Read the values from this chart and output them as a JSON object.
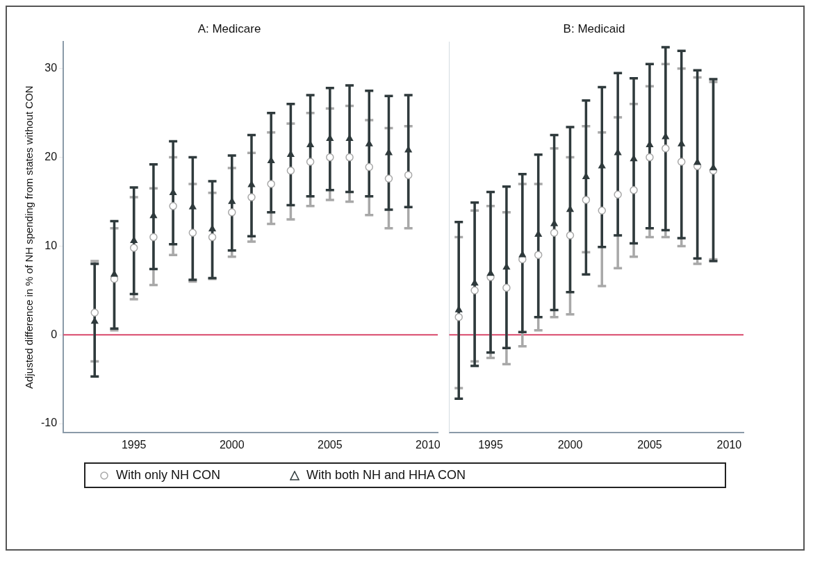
{
  "chart_data": [
    {
      "type": "scatter",
      "title": "A: Medicare",
      "ylabel": "Adjusted difference in % of NH spending from states without CON",
      "xlim": [
        1991.4,
        2010.5
      ],
      "xticks": [
        1995,
        2000,
        2005,
        2010
      ],
      "ylim": [
        -11,
        33
      ],
      "yticks": [
        -10,
        0,
        10,
        20,
        30
      ],
      "grid": false,
      "legend": "bottom",
      "ref_lines": [
        {
          "axis": "y",
          "value": 0,
          "color": "#d8476a"
        }
      ],
      "series": [
        {
          "name": "With only NH CON",
          "color": "#a8a8a8",
          "marker": "circle",
          "x": [
            1993,
            1994,
            1995,
            1996,
            1997,
            1998,
            1999,
            2000,
            2001,
            2002,
            2003,
            2004,
            2005,
            2006,
            2007,
            2008,
            2009
          ],
          "values": [
            2.5,
            6.3,
            9.8,
            11.0,
            14.5,
            11.5,
            11.0,
            13.8,
            15.5,
            17.0,
            18.5,
            19.5,
            20.0,
            20.0,
            18.9,
            17.6,
            18.0
          ],
          "errors": [
            [
              -3,
              8.3
            ],
            [
              0.5,
              12
            ],
            [
              4,
              15.5
            ],
            [
              5.6,
              16.5
            ],
            [
              9,
              20
            ],
            [
              6,
              17
            ],
            [
              6.3,
              16
            ],
            [
              8.8,
              18.8
            ],
            [
              10.5,
              20.5
            ],
            [
              12.5,
              22.8
            ],
            [
              13,
              23.8
            ],
            [
              14.5,
              25
            ],
            [
              15.2,
              25.5
            ],
            [
              15,
              25.8
            ],
            [
              13.5,
              24.2
            ],
            [
              12,
              23.3
            ],
            [
              12,
              23.5
            ]
          ]
        },
        {
          "name": "With both NH and HHA CON",
          "color": "#2f3a3c",
          "marker": "triangle",
          "x": [
            1993,
            1994,
            1995,
            1996,
            1997,
            1998,
            1999,
            2000,
            2001,
            2002,
            2003,
            2004,
            2005,
            2006,
            2007,
            2008,
            2009
          ],
          "values": [
            1.5,
            6.8,
            10.6,
            13.4,
            16.0,
            14.4,
            11.9,
            15.0,
            16.9,
            19.6,
            20.3,
            21.4,
            22.1,
            22.1,
            21.5,
            20.5,
            20.8
          ],
          "errors": [
            [
              -4.7,
              8.0
            ],
            [
              0.7,
              12.8
            ],
            [
              4.6,
              16.6
            ],
            [
              7.4,
              19.2
            ],
            [
              10.2,
              21.8
            ],
            [
              6.2,
              20.0
            ],
            [
              6.4,
              17.3
            ],
            [
              9.5,
              20.2
            ],
            [
              11.1,
              22.5
            ],
            [
              13.8,
              25.0
            ],
            [
              14.6,
              26.0
            ],
            [
              15.6,
              27.0
            ],
            [
              16.3,
              27.8
            ],
            [
              16.1,
              28.1
            ],
            [
              15.6,
              27.5
            ],
            [
              14.1,
              26.9
            ],
            [
              14.4,
              27.0
            ]
          ]
        }
      ]
    },
    {
      "type": "scatter",
      "title": "B: Medicaid",
      "xlim": [
        1992.4,
        2010.9
      ],
      "xticks": [
        1995,
        2000,
        2005,
        2010
      ],
      "ylim": [
        -11,
        33
      ],
      "yticks": [
        -10,
        0,
        10,
        20,
        30
      ],
      "tick_labels": "x",
      "grid": false,
      "ref_lines": [
        {
          "axis": "y",
          "value": 0,
          "color": "#d8476a"
        }
      ],
      "series": [
        {
          "color": "#a8a8a8",
          "marker": "circle",
          "x": [
            1993,
            1994,
            1995,
            1996,
            1997,
            1998,
            1999,
            2000,
            2001,
            2002,
            2003,
            2004,
            2005,
            2006,
            2007,
            2008,
            2009
          ],
          "values": [
            2.0,
            5.0,
            6.5,
            5.3,
            8.5,
            9.0,
            11.5,
            11.2,
            15.2,
            14.0,
            15.8,
            16.3,
            20.0,
            21.0,
            19.5,
            19.0,
            18.5
          ],
          "errors": [
            [
              -6,
              11
            ],
            [
              -3,
              14
            ],
            [
              -2.6,
              14.5
            ],
            [
              -3.3,
              13.8
            ],
            [
              -1.3,
              17
            ],
            [
              0.5,
              17
            ],
            [
              2,
              21
            ],
            [
              2.3,
              20
            ],
            [
              9.3,
              23.5
            ],
            [
              5.5,
              22.8
            ],
            [
              7.5,
              24.5
            ],
            [
              8.8,
              26
            ],
            [
              11,
              28
            ],
            [
              11,
              30.5
            ],
            [
              10,
              30
            ],
            [
              8,
              29
            ],
            [
              8.5,
              28.5
            ]
          ]
        },
        {
          "color": "#2f3a3c",
          "marker": "triangle",
          "x": [
            1993,
            1994,
            1995,
            1996,
            1997,
            1998,
            1999,
            2000,
            2001,
            2002,
            2003,
            2004,
            2005,
            2006,
            2007,
            2008,
            2009
          ],
          "values": [
            2.8,
            5.8,
            6.9,
            7.6,
            9.0,
            11.3,
            12.5,
            14.1,
            17.8,
            19.0,
            20.5,
            19.8,
            21.4,
            22.3,
            21.5,
            19.4,
            18.8
          ],
          "errors": [
            [
              -7.2,
              12.7
            ],
            [
              -3.5,
              14.9
            ],
            [
              -2.0,
              16.1
            ],
            [
              -1.5,
              16.7
            ],
            [
              0.3,
              18.1
            ],
            [
              2.0,
              20.3
            ],
            [
              2.8,
              22.5
            ],
            [
              4.8,
              23.4
            ],
            [
              6.8,
              26.4
            ],
            [
              9.9,
              27.9
            ],
            [
              11.2,
              29.5
            ],
            [
              10.3,
              28.9
            ],
            [
              12.0,
              30.5
            ],
            [
              11.8,
              32.4
            ],
            [
              10.9,
              32.0
            ],
            [
              8.6,
              29.8
            ],
            [
              8.3,
              28.8
            ]
          ]
        }
      ]
    }
  ]
}
